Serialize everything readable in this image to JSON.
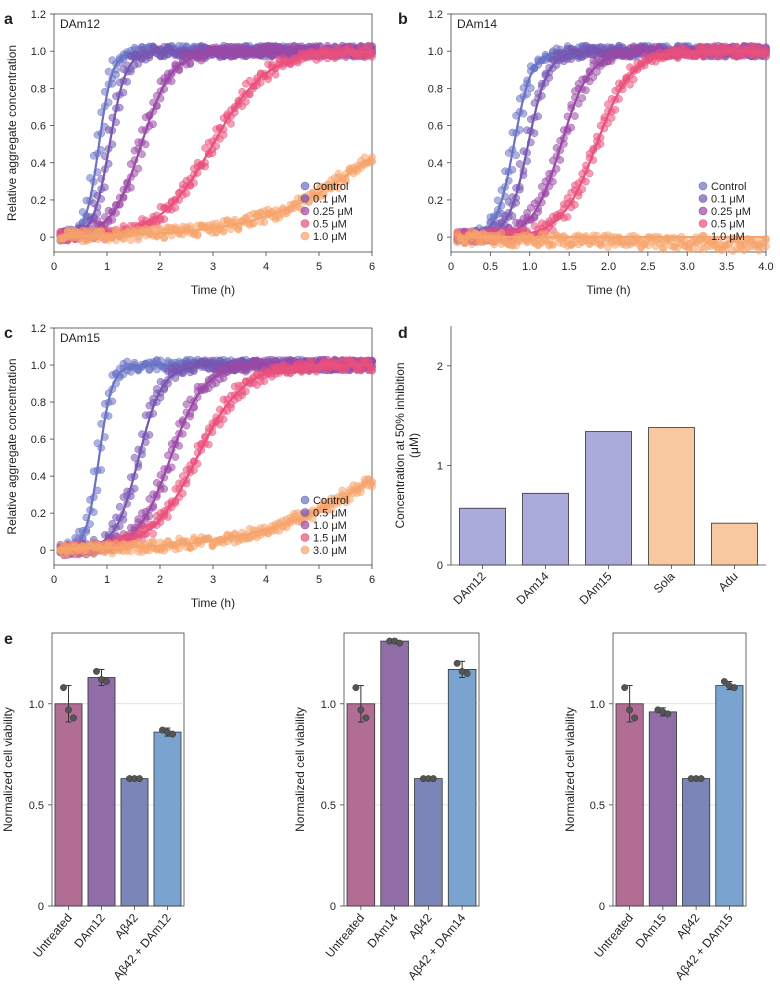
{
  "colors": {
    "Control": "#6a72c4",
    "c2": "#7656b0",
    "c3": "#9a48a6",
    "c4": "#e9507c",
    "c5": "#f6a46c",
    "barBlue": "#aaaadb",
    "barOrange": "#f8c8a0",
    "untreated": "#b26d95",
    "compound": "#916da8",
    "abeta": "#7c85b8",
    "combo": "#7ba3cf"
  },
  "chart_data": [
    {
      "panel": "a",
      "type": "scatter",
      "label": "DAm12",
      "xlabel": "Time (h)",
      "ylabel": "Relative aggregate concentration",
      "xlim": [
        0,
        6
      ],
      "ylim": [
        -0.08,
        1.2
      ],
      "xticks": [
        0,
        1,
        2,
        3,
        4,
        5,
        6
      ],
      "xtickLabels": [
        "0",
        "1",
        "2",
        "3",
        "4",
        "5",
        "6"
      ],
      "yticks": [
        0,
        0.2,
        0.4,
        0.6,
        0.8,
        1.0,
        1.2
      ],
      "ytickLabels": [
        "0",
        "0.2",
        "0.4",
        "0.6",
        "0.8",
        "1.0",
        "1.2"
      ],
      "legend_position": "bottom-right",
      "series": [
        {
          "name": "Control",
          "t50": 0.85,
          "k": 8.0,
          "plateau": 1.0
        },
        {
          "name": "0.1 μM",
          "t50": 1.05,
          "k": 6.5,
          "plateau": 1.0
        },
        {
          "name": "0.25 μM",
          "t50": 1.65,
          "k": 3.5,
          "plateau": 1.0
        },
        {
          "name": "0.5 μM",
          "t50": 3.0,
          "k": 2.0,
          "plateau": 1.0
        },
        {
          "name": "1.0 μM",
          "t50": 6.3,
          "k": 0.9,
          "plateau": 1.0
        }
      ]
    },
    {
      "panel": "b",
      "type": "scatter",
      "label": "DAm14",
      "xlabel": "Time (h)",
      "ylabel": "",
      "xlim": [
        0,
        4
      ],
      "ylim": [
        -0.08,
        1.2
      ],
      "xticks": [
        0,
        0.5,
        1,
        1.5,
        2,
        2.5,
        3,
        3.5,
        4
      ],
      "xtickLabels": [
        "0",
        "0.5",
        "1.0",
        "1.5",
        "2.0",
        "2.5",
        "3.0",
        "3.5",
        "4.0"
      ],
      "yticks": [
        0,
        0.2,
        0.4,
        0.6,
        0.8,
        1.0,
        1.2
      ],
      "ytickLabels": [
        "0",
        "0.2",
        "0.4",
        "0.6",
        "0.8",
        "1.0",
        "1.2"
      ],
      "legend_position": "bottom-right",
      "series": [
        {
          "name": "Control",
          "t50": 0.8,
          "k": 9.0,
          "plateau": 1.0
        },
        {
          "name": "0.1 μM",
          "t50": 0.98,
          "k": 8.0,
          "plateau": 1.0
        },
        {
          "name": "0.25 μM",
          "t50": 1.4,
          "k": 5.5,
          "plateau": 1.0
        },
        {
          "name": "0.5 μM",
          "t50": 1.85,
          "k": 4.5,
          "plateau": 1.0
        },
        {
          "name": "1.0 μM",
          "t50": 99,
          "k": 1.0,
          "plateau": 0.0
        }
      ]
    },
    {
      "panel": "c",
      "type": "scatter",
      "label": "DAm15",
      "xlabel": "Time (h)",
      "ylabel": "Relative aggregate concentration",
      "xlim": [
        0,
        6
      ],
      "ylim": [
        -0.08,
        1.2
      ],
      "xticks": [
        0,
        1,
        2,
        3,
        4,
        5,
        6
      ],
      "xtickLabels": [
        "0",
        "1",
        "2",
        "3",
        "4",
        "5",
        "6"
      ],
      "yticks": [
        0,
        0.2,
        0.4,
        0.6,
        0.8,
        1.0,
        1.2
      ],
      "ytickLabels": [
        "0",
        "0.2",
        "0.4",
        "0.6",
        "0.8",
        "1.0",
        "1.2"
      ],
      "legend_position": "bottom-right",
      "series": [
        {
          "name": "Control",
          "t50": 0.85,
          "k": 8.0,
          "plateau": 1.0
        },
        {
          "name": "0.5 μM",
          "t50": 1.6,
          "k": 4.5,
          "plateau": 1.0
        },
        {
          "name": "1.0 μM",
          "t50": 2.2,
          "k": 3.2,
          "plateau": 1.0
        },
        {
          "name": "1.5 μM",
          "t50": 2.7,
          "k": 2.3,
          "plateau": 1.0
        },
        {
          "name": "3.0 μM",
          "t50": 6.6,
          "k": 0.8,
          "plateau": 1.0
        }
      ]
    },
    {
      "panel": "d",
      "type": "bar",
      "ylabel": "Concentration at 50% inhibition (μM)",
      "ylim": [
        0,
        2.4
      ],
      "yticks": [
        0,
        1,
        2
      ],
      "ytickLabels": [
        "0",
        "1",
        "2"
      ],
      "categories": [
        "DAm12",
        "DAm14",
        "DAm15",
        "Sola",
        "Adu"
      ],
      "values": [
        0.57,
        0.72,
        1.34,
        1.38,
        0.42
      ],
      "fill": [
        "barBlue",
        "barBlue",
        "barBlue",
        "barOrange",
        "barOrange"
      ]
    },
    {
      "panel": "e1",
      "type": "bar",
      "ylabel": "Normalized cell viability",
      "ylim": [
        0,
        1.35
      ],
      "yticks": [
        0,
        0.5,
        1.0
      ],
      "ytickLabels": [
        "0",
        "0.5",
        "1.0"
      ],
      "categories": [
        "Untreated",
        "DAm12",
        "Aβ42",
        "Aβ42 + DAm12"
      ],
      "values": [
        1.0,
        1.13,
        0.63,
        0.86
      ],
      "errors": [
        0.09,
        0.04,
        0.005,
        0.02
      ],
      "points": [
        [
          1.08,
          0.97,
          0.93
        ],
        [
          1.16,
          1.12,
          1.11
        ],
        [
          0.63,
          0.63,
          0.63
        ],
        [
          0.87,
          0.86,
          0.85
        ]
      ],
      "fill": [
        "untreated",
        "compound",
        "abeta",
        "combo"
      ]
    },
    {
      "panel": "e2",
      "type": "bar",
      "ylabel": "Normalized cell viability",
      "ylim": [
        0,
        1.35
      ],
      "yticks": [
        0,
        0.5,
        1.0
      ],
      "ytickLabels": [
        "0",
        "0.5",
        "1.0"
      ],
      "categories": [
        "Untreated",
        "DAm14",
        "Aβ42",
        "Aβ42 + DAm14"
      ],
      "values": [
        1.0,
        1.31,
        0.63,
        1.17
      ],
      "errors": [
        0.09,
        0.01,
        0.005,
        0.04
      ],
      "points": [
        [
          1.08,
          0.97,
          0.93
        ],
        [
          1.31,
          1.31,
          1.3
        ],
        [
          0.63,
          0.63,
          0.63
        ],
        [
          1.2,
          1.16,
          1.15
        ]
      ],
      "fill": [
        "untreated",
        "compound",
        "abeta",
        "combo"
      ]
    },
    {
      "panel": "e3",
      "type": "bar",
      "ylabel": "Normalized cell viability",
      "ylim": [
        0,
        1.35
      ],
      "yticks": [
        0,
        0.5,
        1.0
      ],
      "ytickLabels": [
        "0",
        "0.5",
        "1.0"
      ],
      "categories": [
        "Untreated",
        "DAm15",
        "Aβ42",
        "Aβ42 + DAm15"
      ],
      "values": [
        1.0,
        0.96,
        0.63,
        1.09
      ],
      "errors": [
        0.09,
        0.02,
        0.005,
        0.02
      ],
      "points": [
        [
          1.08,
          0.97,
          0.93
        ],
        [
          0.97,
          0.96,
          0.95
        ],
        [
          0.63,
          0.63,
          0.63
        ],
        [
          1.11,
          1.09,
          1.08
        ]
      ],
      "fill": [
        "untreated",
        "compound",
        "abeta",
        "combo"
      ]
    }
  ],
  "panel_letters": [
    "a",
    "b",
    "c",
    "d",
    "e"
  ]
}
